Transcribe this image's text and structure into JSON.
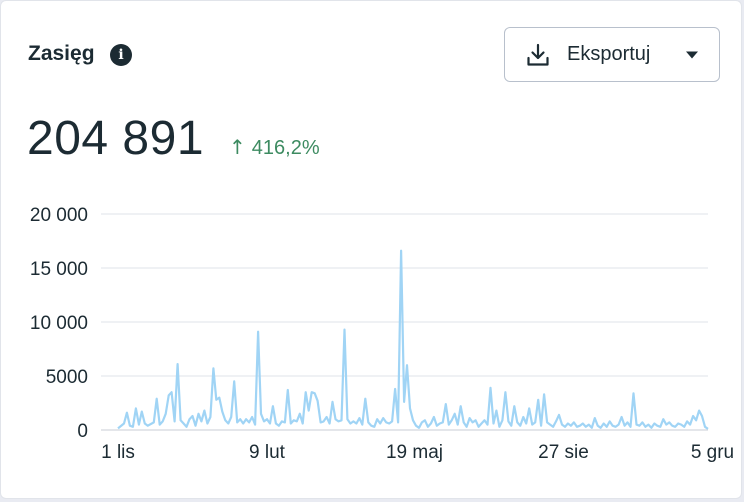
{
  "card": {
    "title": "Zasięg",
    "info_icon": "info-icon",
    "export_label": "Eksportuj",
    "total_value": "204 891",
    "change_arrow": "↑",
    "change_value": "416,2%",
    "colors": {
      "positive": "#3d8b61",
      "line": "#a0d4f5",
      "text": "#1c2b33"
    }
  },
  "chart_data": {
    "type": "line",
    "title": "",
    "xlabel": "",
    "ylabel": "",
    "ylim": [
      0,
      20000
    ],
    "y_ticks": [
      {
        "value": 20000,
        "label": "20 000"
      },
      {
        "value": 15000,
        "label": "15 000"
      },
      {
        "value": 10000,
        "label": "10 000"
      },
      {
        "value": 5000,
        "label": "5000"
      },
      {
        "value": 0,
        "label": "0"
      }
    ],
    "x_ticks": [
      {
        "index": 0,
        "label": "1 lis"
      },
      {
        "index": 100,
        "label": "9 lut"
      },
      {
        "index": 199,
        "label": "19 maj"
      },
      {
        "index": 299,
        "label": "27 sie"
      },
      {
        "index": 399,
        "label": "5 gru"
      }
    ],
    "grid": true,
    "series": [
      {
        "points": [
          [
            0,
            150
          ],
          [
            4,
            600
          ],
          [
            6,
            1600
          ],
          [
            8,
            400
          ],
          [
            10,
            300
          ],
          [
            12,
            2000
          ],
          [
            14,
            500
          ],
          [
            16,
            1700
          ],
          [
            18,
            600
          ],
          [
            20,
            400
          ],
          [
            24,
            700
          ],
          [
            26,
            2900
          ],
          [
            28,
            500
          ],
          [
            30,
            800
          ],
          [
            32,
            1500
          ],
          [
            34,
            3200
          ],
          [
            36,
            3500
          ],
          [
            38,
            800
          ],
          [
            40,
            6100
          ],
          [
            42,
            900
          ],
          [
            44,
            600
          ],
          [
            46,
            300
          ],
          [
            48,
            1000
          ],
          [
            50,
            1300
          ],
          [
            52,
            400
          ],
          [
            54,
            1500
          ],
          [
            56,
            800
          ],
          [
            58,
            1800
          ],
          [
            60,
            600
          ],
          [
            62,
            1200
          ],
          [
            64,
            5700
          ],
          [
            66,
            2800
          ],
          [
            68,
            3000
          ],
          [
            70,
            1700
          ],
          [
            72,
            900
          ],
          [
            74,
            600
          ],
          [
            76,
            1200
          ],
          [
            78,
            4500
          ],
          [
            80,
            700
          ],
          [
            82,
            1000
          ],
          [
            84,
            600
          ],
          [
            86,
            1000
          ],
          [
            88,
            700
          ],
          [
            90,
            1200
          ],
          [
            92,
            500
          ],
          [
            94,
            9100
          ],
          [
            96,
            1500
          ],
          [
            98,
            800
          ],
          [
            100,
            1000
          ],
          [
            102,
            600
          ],
          [
            104,
            2200
          ],
          [
            106,
            600
          ],
          [
            108,
            400
          ],
          [
            110,
            800
          ],
          [
            112,
            700
          ],
          [
            114,
            3700
          ],
          [
            116,
            600
          ],
          [
            118,
            900
          ],
          [
            120,
            800
          ],
          [
            122,
            1500
          ],
          [
            124,
            600
          ],
          [
            126,
            3500
          ],
          [
            128,
            1800
          ],
          [
            130,
            3500
          ],
          [
            132,
            3400
          ],
          [
            134,
            2700
          ],
          [
            136,
            700
          ],
          [
            138,
            800
          ],
          [
            140,
            1200
          ],
          [
            142,
            600
          ],
          [
            144,
            2600
          ],
          [
            146,
            1000
          ],
          [
            148,
            800
          ],
          [
            150,
            900
          ],
          [
            152,
            9300
          ],
          [
            154,
            1000
          ],
          [
            156,
            600
          ],
          [
            158,
            800
          ],
          [
            160,
            600
          ],
          [
            162,
            1100
          ],
          [
            164,
            500
          ],
          [
            166,
            2900
          ],
          [
            168,
            700
          ],
          [
            170,
            400
          ],
          [
            172,
            300
          ],
          [
            174,
            1000
          ],
          [
            176,
            600
          ],
          [
            178,
            1100
          ],
          [
            180,
            700
          ],
          [
            182,
            600
          ],
          [
            184,
            800
          ],
          [
            186,
            3800
          ],
          [
            188,
            700
          ],
          [
            190,
            16600
          ],
          [
            192,
            2600
          ],
          [
            194,
            6000
          ],
          [
            196,
            2000
          ],
          [
            198,
            900
          ],
          [
            200,
            400
          ],
          [
            202,
            200
          ],
          [
            204,
            700
          ],
          [
            206,
            900
          ],
          [
            208,
            300
          ],
          [
            210,
            600
          ],
          [
            212,
            1200
          ],
          [
            214,
            400
          ],
          [
            216,
            600
          ],
          [
            218,
            700
          ],
          [
            220,
            2400
          ],
          [
            222,
            500
          ],
          [
            224,
            900
          ],
          [
            226,
            1500
          ],
          [
            228,
            500
          ],
          [
            230,
            2200
          ],
          [
            232,
            700
          ],
          [
            234,
            300
          ],
          [
            236,
            1100
          ],
          [
            238,
            700
          ],
          [
            240,
            900
          ],
          [
            242,
            300
          ],
          [
            244,
            600
          ],
          [
            246,
            900
          ],
          [
            248,
            500
          ],
          [
            250,
            3900
          ],
          [
            252,
            600
          ],
          [
            254,
            1800
          ],
          [
            256,
            300
          ],
          [
            258,
            900
          ],
          [
            260,
            3500
          ],
          [
            262,
            800
          ],
          [
            264,
            400
          ],
          [
            266,
            2200
          ],
          [
            268,
            700
          ],
          [
            270,
            400
          ],
          [
            272,
            1200
          ],
          [
            274,
            600
          ],
          [
            276,
            2000
          ],
          [
            278,
            500
          ],
          [
            280,
            700
          ],
          [
            282,
            2800
          ],
          [
            284,
            400
          ],
          [
            286,
            3300
          ],
          [
            288,
            700
          ],
          [
            290,
            500
          ],
          [
            292,
            300
          ],
          [
            294,
            800
          ],
          [
            296,
            1400
          ],
          [
            298,
            500
          ],
          [
            300,
            300
          ],
          [
            302,
            600
          ],
          [
            304,
            400
          ],
          [
            306,
            700
          ],
          [
            308,
            300
          ],
          [
            310,
            400
          ],
          [
            312,
            600
          ],
          [
            314,
            300
          ],
          [
            316,
            500
          ],
          [
            318,
            200
          ],
          [
            320,
            1100
          ],
          [
            322,
            400
          ],
          [
            324,
            200
          ],
          [
            326,
            600
          ],
          [
            328,
            300
          ],
          [
            330,
            800
          ],
          [
            332,
            400
          ],
          [
            334,
            300
          ],
          [
            336,
            500
          ],
          [
            338,
            1200
          ],
          [
            340,
            400
          ],
          [
            342,
            700
          ],
          [
            344,
            300
          ],
          [
            346,
            3400
          ],
          [
            348,
            500
          ],
          [
            350,
            400
          ],
          [
            352,
            700
          ],
          [
            354,
            300
          ],
          [
            356,
            500
          ],
          [
            358,
            200
          ],
          [
            360,
            600
          ],
          [
            362,
            400
          ],
          [
            364,
            300
          ],
          [
            366,
            1000
          ],
          [
            368,
            500
          ],
          [
            370,
            700
          ],
          [
            372,
            400
          ],
          [
            374,
            300
          ],
          [
            376,
            600
          ],
          [
            378,
            500
          ],
          [
            380,
            300
          ],
          [
            382,
            800
          ],
          [
            384,
            500
          ],
          [
            386,
            1300
          ],
          [
            388,
            900
          ],
          [
            390,
            1800
          ],
          [
            392,
            1300
          ],
          [
            394,
            300
          ],
          [
            396,
            100
          ]
        ]
      }
    ]
  }
}
